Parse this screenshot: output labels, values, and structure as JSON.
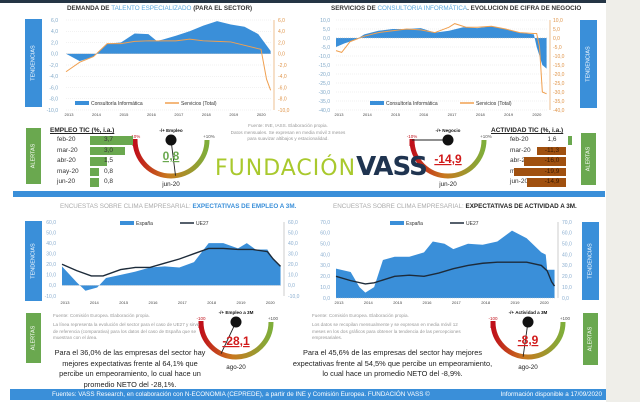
{
  "colors": {
    "accent": "#3a8fd9",
    "orange": "#f0a050",
    "navy": "#1d2b3a",
    "green": "#6aa84f",
    "brown": "#a0500f",
    "red": "#d11a1a"
  },
  "side_labels": {
    "tendencias": "TENDENCIAS",
    "alertas": "ALERTAS"
  },
  "chart_data": [
    {
      "type": "area+line",
      "title_prefix": "DEMANDA DE ",
      "title_highlight": "TALENTO ESPECIALIZADO",
      "title_suffix": " (PARA EL SECTOR)",
      "x_ticks": [
        "2013",
        "2014",
        "2015",
        "2016",
        "2017",
        "2018",
        "2019",
        "2020"
      ],
      "ylim": [
        -10,
        6
      ],
      "y_ticks": [
        "6,0",
        "4,0",
        "2,0",
        "0,0",
        "-2,0",
        "-4,0",
        "-6,0",
        "-8,0",
        "-10,0"
      ],
      "y2_ticks": [
        "6,0",
        "4,0",
        "2,0",
        "0,0",
        "-2,0",
        "-4,0",
        "-6,0",
        "-8,0",
        "-10,0"
      ],
      "legend": "bottom",
      "grid": true,
      "series": [
        {
          "name": "Consultoría Informática",
          "kind": "area",
          "color": "#3a8fd9",
          "x": [
            2013,
            2013.5,
            2014,
            2014.5,
            2015,
            2015.5,
            2016,
            2016.3,
            2016.5,
            2017,
            2017.5,
            2018,
            2018.5,
            2019,
            2019.5,
            2020,
            2020.3,
            2020.45
          ],
          "y": [
            0,
            -1.3,
            -0.5,
            1.8,
            2.0,
            3.6,
            3.5,
            2.3,
            2.5,
            3.2,
            4.0,
            5.0,
            5.8,
            5.2,
            4.8,
            3.5,
            1.5,
            0.5
          ]
        },
        {
          "name": "Servicios (Total)",
          "kind": "line",
          "color": "#f0a050",
          "x": [
            2013,
            2013.5,
            2014,
            2014.5,
            2015,
            2015.5,
            2016,
            2017,
            2017.5,
            2018,
            2018.5,
            2019,
            2019.5,
            2020,
            2020.1,
            2020.3,
            2020.45
          ],
          "y": [
            -3.2,
            -1.5,
            -0.5,
            1.8,
            1.8,
            2.2,
            2.3,
            2.3,
            2.6,
            2.3,
            2.2,
            2.1,
            1.5,
            0.9,
            0.8,
            -4.5,
            -6.5
          ]
        }
      ]
    },
    {
      "type": "area+line",
      "title_prefix": "SERVICIOS DE ",
      "title_highlight": "CONSULTORIA INFORMÁTICA",
      "title_suffix": ". EVOLUCION DE CIFRA DE NEGOCIO",
      "x_ticks": [
        "2013",
        "2014",
        "2015",
        "2016",
        "2017",
        "2018",
        "2019",
        "2020"
      ],
      "ylim": [
        -40,
        10
      ],
      "y_ticks": [
        "10,0",
        "5,0",
        "0,0",
        "-5,0",
        "-10,0",
        "-15,0",
        "-20,0",
        "-25,0",
        "-30,0",
        "-35,0",
        "-40,0"
      ],
      "y2_ticks": [
        "10,0",
        "5,0",
        "0,0",
        "-5,0",
        "-10,0",
        "-15,0",
        "-20,0",
        "-25,0",
        "-30,0",
        "-35,0",
        "-40,0"
      ],
      "legend": "bottom",
      "grid": true,
      "series": [
        {
          "name": "Consultoría Informática",
          "kind": "area",
          "color": "#3a8fd9",
          "x": [
            2013,
            2013.3,
            2013.7,
            2014,
            2014.5,
            2015,
            2015.5,
            2016,
            2016.5,
            2017,
            2017.5,
            2018,
            2018.5,
            2019,
            2019.5,
            2020,
            2020.1,
            2020.3,
            2020.45
          ],
          "y": [
            -5,
            -3,
            -1,
            2,
            4,
            5,
            5,
            5.5,
            3,
            4,
            6,
            5.5,
            6.5,
            5,
            3,
            2,
            -5,
            -15,
            -17
          ]
        },
        {
          "name": "Servicios (Total)",
          "kind": "line",
          "color": "#f0a050",
          "x": [
            2013,
            2013.2,
            2013.5,
            2014,
            2014.5,
            2015,
            2015.5,
            2016,
            2016.5,
            2017,
            2017.2,
            2017.6,
            2018,
            2018.5,
            2019,
            2019.5,
            2020,
            2020.1,
            2020.2,
            2020.3,
            2020.45
          ],
          "y": [
            -7,
            -8,
            -2,
            1,
            3,
            4,
            5,
            4.5,
            3,
            6,
            8,
            6,
            6,
            6.5,
            5,
            3,
            2.5,
            2.5,
            -5,
            -30,
            -31
          ]
        }
      ]
    },
    {
      "type": "area+line",
      "title_prefix": "ENCUESTAS SOBRE CLIMA EMPRESARIAL: ",
      "title_highlight": "EXPECTATIVAS DE EMPLEO A 3M.",
      "x_ticks": [
        "2013",
        "2014",
        "2015",
        "2016",
        "2017",
        "2018",
        "2019",
        "2020"
      ],
      "ylim": [
        -10,
        60
      ],
      "y_ticks": [
        "60,0",
        "50,0",
        "40,0",
        "30,0",
        "20,0",
        "10,0",
        "0,0",
        "-10,0"
      ],
      "y2_ticks": [
        "60,0",
        "50,0",
        "40,0",
        "30,0",
        "20,0",
        "10,0",
        "0,0",
        "-10,0"
      ],
      "legend": "top",
      "grid": false,
      "series": [
        {
          "name": "España",
          "kind": "area",
          "color": "#3a8fd9",
          "x": [
            2013,
            2013.5,
            2013.8,
            2014.2,
            2014.5,
            2015,
            2015.5,
            2016,
            2016.5,
            2017,
            2017.5,
            2018,
            2018.5,
            2019,
            2019.3,
            2019.6,
            2020,
            2020.2,
            2020.45
          ],
          "y": [
            18,
            3,
            -5,
            -2,
            7,
            10,
            13,
            17,
            18,
            17,
            22,
            40,
            40,
            35,
            40,
            34,
            34,
            25,
            18
          ]
        },
        {
          "name": "UE27",
          "kind": "line",
          "color": "#1d2b3a",
          "x": [
            2013,
            2013.5,
            2014,
            2014.4,
            2015,
            2015.5,
            2016,
            2016.5,
            2017,
            2017.5,
            2018,
            2018.5,
            2019,
            2019.5,
            2020,
            2020.2,
            2020.45
          ],
          "y": [
            20,
            14,
            9,
            9,
            15,
            17,
            17,
            21,
            25,
            30,
            35,
            35,
            34,
            34,
            32,
            25,
            18
          ]
        }
      ]
    },
    {
      "type": "area+line",
      "title_prefix": "ENCUESTAS SOBRE CLIMA EMPRESARIAL: ",
      "title_highlight": "EXPECTATIVAS DE ACTIVIDAD A 3M.",
      "x_ticks": [
        "2013",
        "2014",
        "2015",
        "2016",
        "2017",
        "2018",
        "2019",
        "2020"
      ],
      "ylim": [
        0,
        70
      ],
      "y_ticks": [
        "70,0",
        "60,0",
        "50,0",
        "40,0",
        "30,0",
        "20,0",
        "10,0",
        "0,0"
      ],
      "y2_ticks": [
        "70,0",
        "60,0",
        "50,0",
        "40,0",
        "30,0",
        "20,0",
        "10,0",
        "0,0"
      ],
      "legend": "top",
      "grid": false,
      "series": [
        {
          "name": "España",
          "kind": "area",
          "color": "#3a8fd9",
          "x": [
            2013,
            2013.5,
            2013.8,
            2014,
            2014.3,
            2014.6,
            2015,
            2015.5,
            2016,
            2016.3,
            2016.7,
            2017,
            2017.5,
            2018,
            2018.5,
            2019,
            2019.5,
            2020,
            2020.15,
            2020.2,
            2020.45
          ],
          "y": [
            27,
            24,
            10,
            5,
            10,
            35,
            38,
            38,
            42,
            52,
            50,
            45,
            50,
            49,
            52,
            62,
            55,
            42,
            40,
            26,
            26
          ]
        },
        {
          "name": "UE27",
          "kind": "line",
          "color": "#1d2b3a",
          "x": [
            2013,
            2013.5,
            2014,
            2014.3,
            2015,
            2015.5,
            2016,
            2016.5,
            2017,
            2017.5,
            2018,
            2018.5,
            2019,
            2019.5,
            2020,
            2020.2,
            2020.35,
            2020.45
          ],
          "y": [
            20,
            16,
            13,
            14,
            20,
            21,
            20,
            23,
            27,
            30,
            32,
            33,
            33,
            33,
            30,
            25,
            15,
            11
          ]
        }
      ]
    }
  ],
  "source_top": {
    "line1": "Fuente: INE, IASS. Elaboración propia.",
    "line2": "Datos mensuales. Se expresan en media móvil 3 meses",
    "line3": "para suavizar altibajos y estacionalidad."
  },
  "empleo_table": {
    "title": "EMPLEO TIC (%, i.a.)",
    "rows": [
      {
        "label": "feb-20",
        "value": 3.7,
        "text": "3,7"
      },
      {
        "label": "mar-20",
        "value": 3.0,
        "text": "3,0"
      },
      {
        "label": "abr-20",
        "value": 1.5,
        "text": "1,5"
      },
      {
        "label": "may-20",
        "value": 0.8,
        "text": "0,8"
      },
      {
        "label": "jun-20",
        "value": 0.8,
        "text": "0,8"
      }
    ]
  },
  "actividad_table": {
    "title": "ACTIVIDAD TIC (%, i.a.)",
    "rows": [
      {
        "label": "feb-20",
        "value": 1.6,
        "text": "1,6"
      },
      {
        "label": "mar-20",
        "value": -11.3,
        "text": "-11,3"
      },
      {
        "label": "abr-20",
        "value": -16.0,
        "text": "-16,0"
      },
      {
        "label": "may-20",
        "value": -19.9,
        "text": "-19,9"
      },
      {
        "label": "jun-20",
        "value": -14.9,
        "text": "-14,9"
      }
    ]
  },
  "gauges": [
    {
      "title": "-/+ Empleo",
      "min_label": "-10%",
      "max_label": "+10%",
      "max": 10,
      "value": 0.8,
      "value_text": "0,8",
      "value_color": "#6aa84f",
      "period": "jun-20"
    },
    {
      "title": "-/+ Negocio",
      "min_label": "-10%",
      "max_label": "+10%",
      "max": 10,
      "value": -14.9,
      "value_text": "-14,9",
      "value_color": "#d11a1a",
      "period": "jun-20"
    },
    {
      "title": "-/+ Empleo a 3M",
      "min_label": "-100",
      "max_label": "+100",
      "max": 100,
      "value": -28.1,
      "value_text": "-28,1",
      "value_color": "#d11a1a",
      "period": "ago-20"
    },
    {
      "title": "-/+ Actividad a 3M",
      "min_label": "-100",
      "max_label": "+100",
      "max": 100,
      "value": -8.9,
      "value_text": "-8,9",
      "value_color": "#d11a1a",
      "period": "ago-20"
    }
  ],
  "logo": {
    "text1": "FUNDACIÓN",
    "text2": "VASS"
  },
  "bottom_left": {
    "source": "Fuente: Comisión Europea. Elaboración propia.",
    "note": "La línea representa la evolución del sector para el caso de UE27 y sirve de referencia (comparativa) para los datos del caso de España que se muestran con el área.",
    "summary": "Para el 36,0% de las empresas del sector hay mejores expectativas frente al 64,1% que percibe un empeoramiento, lo cual hace un promedio NETO del -28,1%."
  },
  "bottom_right": {
    "source": "Fuente: Comisión Europea. Elaboración propia.",
    "note": "Los datos se recopilan mensualmente y se expresan en media móvil 12 meses en los dos gráficos para obtener la tendencia de las percepciones empresariales.",
    "summary": "Para el 45,6% de las empresas del sector hay mejores expectativas frente al 54,5% que percibe un empeoramiento, lo cual hace un promedio NETO del -8,9%."
  },
  "footer": {
    "sources": "Fuentes: VASS Research, en colaboración con N-ECONOMIA (CEPREDE), a partir de INE y Comisión Europea. FUNDACIÓN VASS ©",
    "date": "Información disponible a 17/09/2020"
  }
}
